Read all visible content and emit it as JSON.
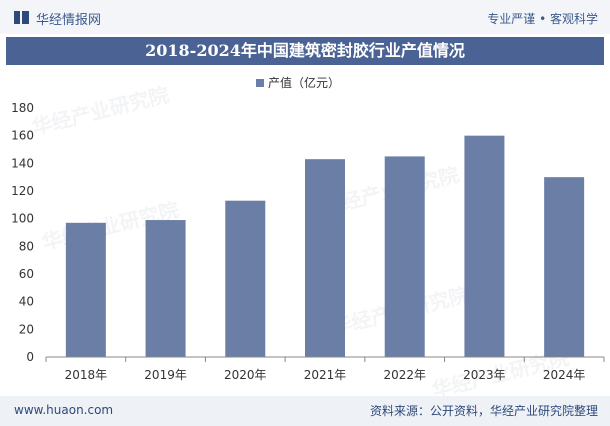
{
  "brand": {
    "name": "华经情报网",
    "slogan": "专业严谨 • 客观科学"
  },
  "title": "2018-2024年中国建筑密封胶行业产值情况",
  "footer": {
    "url": "www.huaon.com",
    "source": "资料来源：公开资料，华经产业研究院整理"
  },
  "watermark": "华经产业研究院",
  "colors": {
    "bar": "#6a7ea6",
    "title_bg": "#4a6394",
    "axis": "#888888"
  },
  "chart_data": {
    "type": "bar",
    "categories": [
      "2018年",
      "2019年",
      "2020年",
      "2021年",
      "2022年",
      "2023年",
      "2024年"
    ],
    "series": [
      {
        "name": "产值（亿元）",
        "values": [
          97,
          99,
          113,
          143,
          145,
          160,
          130
        ]
      }
    ],
    "yticks": [
      0,
      20,
      40,
      60,
      80,
      100,
      120,
      140,
      160,
      180
    ],
    "ylim": [
      0,
      180
    ],
    "grid": false,
    "legend": "top-center"
  }
}
